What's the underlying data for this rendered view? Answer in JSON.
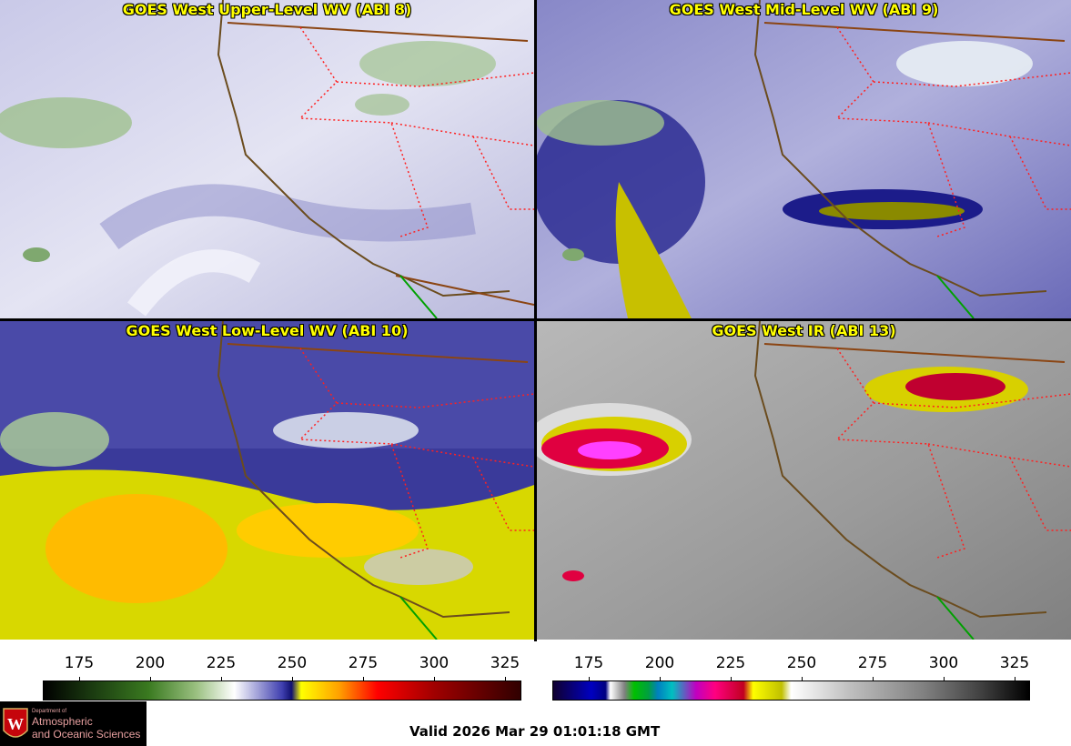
{
  "panels": [
    {
      "title": "GOES West Upper-Level WV (ABI 8)"
    },
    {
      "title": "GOES West Mid-Level WV (ABI 9)"
    },
    {
      "title": "GOES West Low-Level WV (ABI 10)"
    },
    {
      "title": "GOES West IR (ABI 13)"
    }
  ],
  "colorbars": [
    {
      "ticks": [
        "175",
        "200",
        "225",
        "250",
        "275",
        "300",
        "325"
      ]
    },
    {
      "ticks": [
        "175",
        "200",
        "225",
        "250",
        "275",
        "300",
        "325"
      ]
    }
  ],
  "logo": {
    "line1": "Department of",
    "line2": "Atmospheric",
    "line3": "and Oceanic Sciences",
    "icon": "uw-crest-icon"
  },
  "valid_text": "Valid 2026 Mar 29 01:01:18 GMT"
}
